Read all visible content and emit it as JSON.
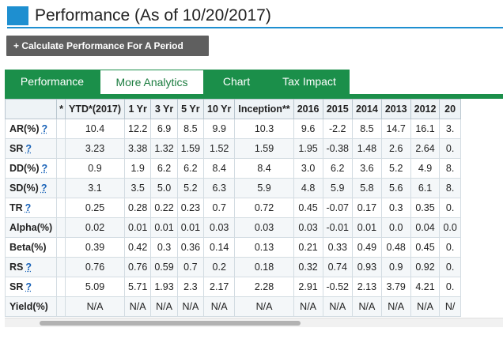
{
  "title": "Performance (As of 10/20/2017)",
  "calculate_button": "+ Calculate Performance For A Period",
  "tabs": [
    {
      "label": "Performance",
      "active": false
    },
    {
      "label": "More Analytics",
      "active": true
    },
    {
      "label": "Chart",
      "active": false
    },
    {
      "label": "Tax Impact",
      "active": false
    }
  ],
  "table": {
    "columns": [
      "*",
      "YTD*(2017)",
      "1 Yr",
      "3 Yr",
      "5 Yr",
      "10 Yr",
      "Inception**",
      "2016",
      "2015",
      "2014",
      "2013",
      "2012",
      "20"
    ],
    "rows": [
      {
        "label": "AR(%)",
        "help": "?",
        "values": [
          "",
          "10.4",
          "12.2",
          "6.9",
          "8.5",
          "9.9",
          "10.3",
          "9.6",
          "-2.2",
          "8.5",
          "14.7",
          "16.1",
          "3."
        ]
      },
      {
        "label": "SR",
        "help": "?",
        "values": [
          "",
          "3.23",
          "3.38",
          "1.32",
          "1.59",
          "1.52",
          "1.59",
          "1.95",
          "-0.38",
          "1.48",
          "2.6",
          "2.64",
          "0."
        ]
      },
      {
        "label": "DD(%)",
        "help": "?",
        "values": [
          "",
          "0.9",
          "1.9",
          "6.2",
          "6.2",
          "8.4",
          "8.4",
          "3.0",
          "6.2",
          "3.6",
          "5.2",
          "4.9",
          "8."
        ]
      },
      {
        "label": "SD(%)",
        "help": "?",
        "values": [
          "",
          "3.1",
          "3.5",
          "5.0",
          "5.2",
          "6.3",
          "5.9",
          "4.8",
          "5.9",
          "5.8",
          "5.6",
          "6.1",
          "8."
        ]
      },
      {
        "label": "TR",
        "help": "?",
        "values": [
          "",
          "0.25",
          "0.28",
          "0.22",
          "0.23",
          "0.7",
          "0.72",
          "0.45",
          "-0.07",
          "0.17",
          "0.3",
          "0.35",
          "0."
        ]
      },
      {
        "label": "Alpha(%)",
        "help": "",
        "values": [
          "",
          "0.02",
          "0.01",
          "0.01",
          "0.01",
          "0.03",
          "0.03",
          "0.03",
          "-0.01",
          "0.01",
          "0.0",
          "0.04",
          "0.0"
        ]
      },
      {
        "label": "Beta(%)",
        "help": "",
        "values": [
          "",
          "0.39",
          "0.42",
          "0.3",
          "0.36",
          "0.14",
          "0.13",
          "0.21",
          "0.33",
          "0.49",
          "0.48",
          "0.45",
          "0."
        ]
      },
      {
        "label": "RS",
        "help": "?",
        "values": [
          "",
          "0.76",
          "0.76",
          "0.59",
          "0.7",
          "0.2",
          "0.18",
          "0.32",
          "0.74",
          "0.93",
          "0.9",
          "0.92",
          "0."
        ]
      },
      {
        "label": "SR",
        "help": "?",
        "values": [
          "",
          "5.09",
          "5.71",
          "1.93",
          "2.3",
          "2.17",
          "2.28",
          "2.91",
          "-0.52",
          "2.13",
          "3.79",
          "4.21",
          "0."
        ]
      },
      {
        "label": "Yield(%)",
        "help": "",
        "values": [
          "",
          "N/A",
          "N/A",
          "N/A",
          "N/A",
          "N/A",
          "N/A",
          "N/A",
          "N/A",
          "N/A",
          "N/A",
          "N/A",
          "N/"
        ]
      }
    ]
  },
  "colors": {
    "title_accent": "#1e8fd0",
    "tab_green": "#1b8f4a",
    "help_link": "#1a63b8",
    "button_gray": "#5f5f5f"
  }
}
